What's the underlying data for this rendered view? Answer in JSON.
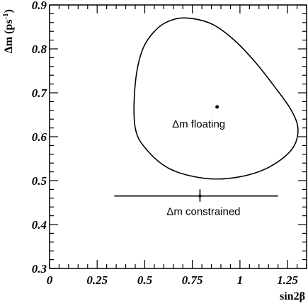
{
  "chart_data": {
    "type": "scatter",
    "xlabel": "sin2β",
    "ylabel": "Δm (ps",
    "ylabel_sup": "-1",
    "ylabel_close": ")",
    "xlim": [
      0,
      1.35
    ],
    "ylim": [
      0.3,
      0.9
    ],
    "x_major_ticks": [
      0,
      0.25,
      0.5,
      0.75,
      1,
      1.25
    ],
    "x_tick_labels": [
      "0",
      "0.25",
      "0.5",
      "0.75",
      "1",
      "1.25"
    ],
    "y_major_ticks": [
      0.3,
      0.4,
      0.5,
      0.6,
      0.7,
      0.8,
      0.9
    ],
    "y_tick_labels": [
      "0.3",
      "0.4",
      "0.5",
      "0.6",
      "0.7",
      "0.8",
      "0.9"
    ],
    "x_minor_step": 0.05,
    "y_minor_step": 0.02,
    "grid": false,
    "floating": {
      "label": "Δm floating",
      "point": {
        "x": 0.88,
        "y": 0.668
      },
      "contour": [
        [
          0.75,
          0.869
        ],
        [
          0.86,
          0.855
        ],
        [
          0.97,
          0.82
        ],
        [
          1.08,
          0.77
        ],
        [
          1.18,
          0.715
        ],
        [
          1.27,
          0.66
        ],
        [
          1.305,
          0.615
        ],
        [
          1.27,
          0.57
        ],
        [
          1.15,
          0.53
        ],
        [
          0.99,
          0.508
        ],
        [
          0.82,
          0.505
        ],
        [
          0.64,
          0.525
        ],
        [
          0.515,
          0.568
        ],
        [
          0.45,
          0.62
        ],
        [
          0.45,
          0.72
        ],
        [
          0.49,
          0.8
        ],
        [
          0.57,
          0.848
        ],
        [
          0.66,
          0.868
        ]
      ]
    },
    "constrained": {
      "label": "Δm constrained",
      "point": {
        "x": 0.79,
        "y": 0.465
      },
      "x_err": [
        0.34,
        1.2
      ],
      "y_err": [
        0.452,
        0.48
      ]
    }
  }
}
